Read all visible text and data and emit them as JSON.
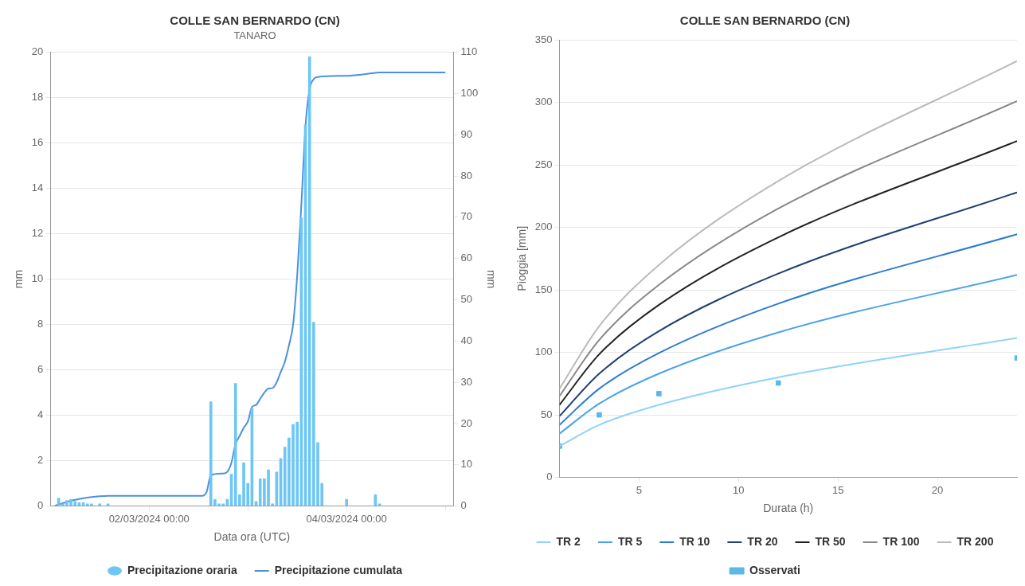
{
  "chart_data": [
    {
      "type": "bar",
      "title": "COLLE SAN BERNARDO (CN)",
      "subtitle": "TANARO",
      "xlabel": "Data ora (UTC)",
      "ylabel": "mm",
      "y2label": "mm",
      "legend": "bottom",
      "grid": "y",
      "xlim": [
        "2024-03-01T00:00",
        "2024-03-05T02:00"
      ],
      "xticks": [
        {
          "value": "2024-03-02T00:00",
          "label": "02/03/2024 00:00"
        },
        {
          "value": "2024-03-03T00:00",
          "label": null
        },
        {
          "value": "2024-03-04T00:00",
          "label": "04/03/2024 00:00"
        },
        {
          "value": "2024-03-05T00:00",
          "label": null
        }
      ],
      "ylim": [
        0,
        20
      ],
      "yticks": [
        0,
        2,
        4,
        6,
        8,
        10,
        12,
        14,
        16,
        18,
        20
      ],
      "y2lim": [
        0,
        110
      ],
      "y2ticks": [
        0,
        10,
        20,
        30,
        40,
        50,
        60,
        70,
        80,
        90,
        100,
        110
      ],
      "series": [
        {
          "name": "Precipitazione oraria",
          "type": "bar",
          "color": "#6ec6f5",
          "x": [
            "2024-03-01T02:00",
            "2024-03-01T03:00",
            "2024-03-01T04:00",
            "2024-03-01T05:00",
            "2024-03-01T06:00",
            "2024-03-01T07:00",
            "2024-03-01T08:00",
            "2024-03-01T09:00",
            "2024-03-01T10:00",
            "2024-03-01T12:00",
            "2024-03-01T14:00",
            "2024-03-02T15:00",
            "2024-03-02T16:00",
            "2024-03-02T17:00",
            "2024-03-02T18:00",
            "2024-03-02T19:00",
            "2024-03-02T20:00",
            "2024-03-02T21:00",
            "2024-03-02T22:00",
            "2024-03-02T23:00",
            "2024-03-03T00:00",
            "2024-03-03T01:00",
            "2024-03-03T02:00",
            "2024-03-03T03:00",
            "2024-03-03T04:00",
            "2024-03-03T05:00",
            "2024-03-03T06:00",
            "2024-03-03T07:00",
            "2024-03-03T08:00",
            "2024-03-03T09:00",
            "2024-03-03T10:00",
            "2024-03-03T11:00",
            "2024-03-03T12:00",
            "2024-03-03T13:00",
            "2024-03-03T14:00",
            "2024-03-03T15:00",
            "2024-03-03T16:00",
            "2024-03-03T17:00",
            "2024-03-03T18:00",
            "2024-03-04T00:00",
            "2024-03-04T07:00",
            "2024-03-04T08:00"
          ],
          "values": [
            0.35,
            0.1,
            0.25,
            0.3,
            0.2,
            0.15,
            0.15,
            0.1,
            0.1,
            0.1,
            0.1,
            4.6,
            0.3,
            0.1,
            0.1,
            0.3,
            1.4,
            5.4,
            0.5,
            1.9,
            1.0,
            4.3,
            0.2,
            1.2,
            1.2,
            1.6,
            0.1,
            1.5,
            2.1,
            2.6,
            3.0,
            3.6,
            3.7,
            12.7,
            16.8,
            19.8,
            8.1,
            2.8,
            1.0,
            0.3,
            0.5,
            0.1
          ]
        },
        {
          "name": "Precipitazione cumulata",
          "type": "line",
          "axis": "y2",
          "color": "#4a90e2",
          "marker": "none",
          "x": [
            "2024-03-01T01:00",
            "2024-03-01T02:00",
            "2024-03-01T04:00",
            "2024-03-01T06:00",
            "2024-03-01T08:00",
            "2024-03-01T10:00",
            "2024-03-01T12:00",
            "2024-03-01T14:00",
            "2024-03-02T13:00",
            "2024-03-02T14:00",
            "2024-03-02T15:00",
            "2024-03-02T18:00",
            "2024-03-02T19:00",
            "2024-03-02T20:00",
            "2024-03-02T21:00",
            "2024-03-02T22:00",
            "2024-03-02T23:00",
            "2024-03-03T00:00",
            "2024-03-03T01:00",
            "2024-03-03T02:00",
            "2024-03-03T03:00",
            "2024-03-03T04:00",
            "2024-03-03T05:00",
            "2024-03-03T06:00",
            "2024-03-03T07:00",
            "2024-03-03T08:00",
            "2024-03-03T09:00",
            "2024-03-03T10:00",
            "2024-03-03T11:00",
            "2024-03-03T12:00",
            "2024-03-03T13:00",
            "2024-03-03T14:00",
            "2024-03-03T15:00",
            "2024-03-03T16:00",
            "2024-03-03T17:00",
            "2024-03-04T00:00",
            "2024-03-04T07:00",
            "2024-03-04T08:00",
            "2024-03-05T00:00"
          ],
          "values": [
            0,
            0.4,
            1.0,
            1.5,
            1.9,
            2.2,
            2.4,
            2.5,
            2.5,
            3.5,
            7.5,
            7.9,
            8.3,
            10.5,
            15,
            17,
            19,
            20.5,
            24,
            24.5,
            26,
            27.5,
            28.5,
            28.6,
            30,
            32.5,
            35,
            39,
            44,
            56,
            73,
            92,
            101,
            103.5,
            104,
            104.3,
            105,
            105.1,
            105.1
          ]
        }
      ]
    },
    {
      "type": "line",
      "title": "COLLE SAN BERNARDO (CN)",
      "xlabel": "Durata (h)",
      "ylabel": "Pioggia [mm]",
      "legend": "bottom",
      "grid": "y",
      "marker": "none",
      "x": [
        1,
        3,
        6,
        12,
        24
      ],
      "xlim": [
        1,
        24
      ],
      "xticks": [
        5,
        10,
        15,
        20
      ],
      "ylim": [
        0,
        350
      ],
      "yticks": [
        0,
        50,
        100,
        150,
        200,
        250,
        300,
        350
      ],
      "series": [
        {
          "name": "TR 2",
          "color": "#8fd3f7",
          "values": [
            25,
            42,
            58,
            80,
            111.5
          ]
        },
        {
          "name": "TR 5",
          "color": "#4aa3e8",
          "values": [
            35,
            59,
            83,
            116,
            162
          ]
        },
        {
          "name": "TR 10",
          "color": "#2b7bd0",
          "values": [
            42,
            71,
            99.5,
            139,
            194.5
          ]
        },
        {
          "name": "TR 20",
          "color": "#1f3f70",
          "values": [
            49,
            83,
            117,
            163,
            228
          ]
        },
        {
          "name": "TR 50",
          "color": "#222222",
          "values": [
            58,
            98.5,
            138,
            192,
            269
          ]
        },
        {
          "name": "TR 100",
          "color": "#888888",
          "values": [
            65,
            110,
            154,
            215,
            301
          ]
        },
        {
          "name": "TR 200",
          "color": "#bbbbbb",
          "values": [
            71,
            121,
            170,
            237,
            333
          ]
        },
        {
          "name": "Osservati",
          "type": "scatter",
          "marker": "square",
          "color": "#5bb8e8",
          "values": [
            25,
            50,
            67,
            75.5,
            95.5
          ]
        }
      ]
    }
  ]
}
